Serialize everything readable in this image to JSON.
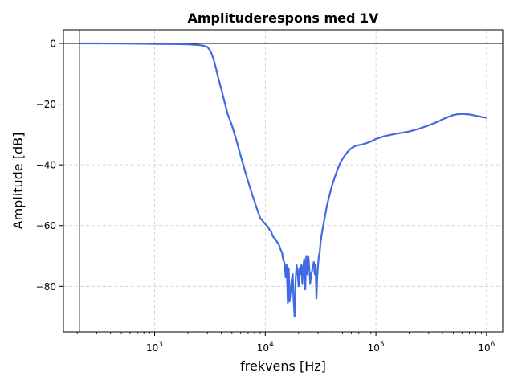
{
  "chart_data": {
    "type": "line",
    "title": "Amplituderespons med 1V",
    "xlabel": "frekvens [Hz]",
    "ylabel": "Amplitude [dB]",
    "xscale": "log",
    "xlim": [
      150,
      1400000
    ],
    "ylim": [
      -95,
      4.5
    ],
    "xticks": [
      {
        "value": 1000,
        "base": "10",
        "exp": "3"
      },
      {
        "value": 10000,
        "base": "10",
        "exp": "4"
      },
      {
        "value": 100000,
        "base": "10",
        "exp": "5"
      },
      {
        "value": 1000000,
        "base": "10",
        "exp": "6"
      }
    ],
    "yticks": [
      {
        "value": 0,
        "label": "0"
      },
      {
        "value": -20,
        "label": "−20"
      },
      {
        "value": -40,
        "label": "−40"
      },
      {
        "value": -60,
        "label": "−60"
      },
      {
        "value": -80,
        "label": "−80"
      }
    ],
    "grid": true,
    "reference_lines": {
      "y": 0,
      "x": 210
    },
    "colors": {
      "line": "#4169e1",
      "grid": "#cccccc",
      "reference": "#000000"
    },
    "series": [
      {
        "x": [
          210,
          300,
          500,
          800,
          1000,
          1500,
          2000,
          2500,
          2800,
          3000,
          3200,
          3400,
          3600,
          3800,
          4000,
          4300,
          4600,
          5000,
          5500,
          6000,
          6500,
          7000,
          7500,
          8000,
          8500,
          9000,
          9500,
          10000,
          10300,
          10600,
          11000,
          11300,
          11700,
          12000,
          12400,
          12800,
          13200,
          13500,
          13800,
          14200,
          14500,
          14800,
          15000,
          15300,
          15600,
          16000,
          16300,
          16600,
          17000,
          17300,
          17700,
          18000,
          18400,
          18800,
          19200,
          19600,
          20000,
          20400,
          20800,
          21200,
          21600,
          22000,
          22500,
          23000,
          23500,
          24000,
          24500,
          25000,
          25500,
          26000,
          26500,
          27000,
          27500,
          28000,
          28500,
          29000,
          29500,
          30000,
          30500,
          31000,
          31500,
          32000,
          33000,
          34000,
          35000,
          36000,
          38000,
          40000,
          42000,
          45000,
          48000,
          52000,
          56000,
          60000,
          65000,
          70000,
          75000,
          80000,
          90000,
          100000,
          120000,
          150000,
          200000,
          250000,
          300000,
          350000,
          400000,
          450000,
          500000,
          550000,
          600000,
          700000,
          800000,
          900000,
          1000000
        ],
        "y": [
          0,
          0,
          -0.05,
          -0.1,
          -0.15,
          -0.2,
          -0.3,
          -0.5,
          -0.8,
          -1.2,
          -2.5,
          -5,
          -8.5,
          -12,
          -15,
          -19.5,
          -23.5,
          -27,
          -32,
          -37,
          -41.5,
          -45.5,
          -49,
          -52,
          -55,
          -57.5,
          -58.5,
          -59.5,
          -60,
          -60.5,
          -61.5,
          -62,
          -63.5,
          -64,
          -64.5,
          -65.5,
          -66,
          -67,
          -68,
          -69,
          -71,
          -72,
          -73,
          -77,
          -73,
          -85.5,
          -74,
          -85,
          -81,
          -78,
          -76,
          -84,
          -90,
          -78,
          -73,
          -75,
          -80,
          -74,
          -76,
          -73,
          -79,
          -74,
          -71,
          -81,
          -70,
          -76,
          -70,
          -74,
          -79,
          -76,
          -75,
          -73,
          -72,
          -76,
          -73,
          -84,
          -77,
          -73,
          -70,
          -69,
          -66,
          -64,
          -61,
          -58.5,
          -56,
          -53.5,
          -50,
          -47,
          -44.5,
          -41.5,
          -39,
          -37,
          -35.5,
          -34.5,
          -33.8,
          -33.5,
          -33.3,
          -33,
          -32.3,
          -31.5,
          -30.5,
          -29.8,
          -29,
          -28,
          -27,
          -26,
          -25,
          -24.2,
          -23.6,
          -23.3,
          -23.2,
          -23.4,
          -23.8,
          -24.2,
          -24.5
        ]
      }
    ]
  }
}
